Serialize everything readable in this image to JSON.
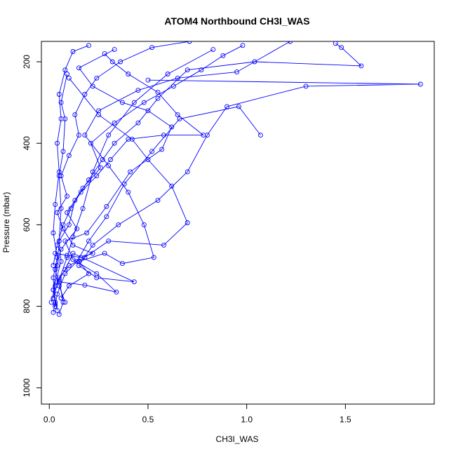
{
  "chart_data": {
    "type": "line",
    "title": "ATOM4 Northbound CH3I_WAS",
    "xlabel": "CH3I_WAS",
    "ylabel": "Pressure (mbar)",
    "xlim": [
      -0.04,
      1.95
    ],
    "ylim": [
      1040,
      150
    ],
    "y_reversed": true,
    "xticks": [
      0.0,
      0.5,
      1.0,
      1.5
    ],
    "xtick_labels": [
      "0.0",
      "0.5",
      "1.0",
      "1.5"
    ],
    "yticks": [
      200,
      400,
      600,
      800,
      1000
    ],
    "ytick_labels": [
      "200",
      "400",
      "600",
      "800",
      "1000"
    ],
    "grid": false,
    "marker": "open-circle",
    "color": "#0000ff",
    "series": [
      {
        "points": [
          [
            0.02,
            815
          ],
          [
            0.03,
            790
          ],
          [
            0.02,
            760
          ],
          [
            0.04,
            700
          ],
          [
            0.05,
            640
          ],
          [
            0.06,
            560
          ],
          [
            0.05,
            480
          ],
          [
            0.07,
            420
          ],
          [
            0.08,
            340
          ],
          [
            0.06,
            300
          ],
          [
            0.09,
            230
          ]
        ]
      },
      {
        "points": [
          [
            0.05,
            820
          ],
          [
            0.07,
            790
          ],
          [
            0.05,
            735
          ],
          [
            0.09,
            680
          ],
          [
            0.12,
            630
          ],
          [
            0.17,
            560
          ],
          [
            0.22,
            470
          ],
          [
            0.3,
            380
          ],
          [
            0.43,
            300
          ],
          [
            0.6,
            230
          ],
          [
            0.83,
            170
          ]
        ]
      },
      {
        "points": [
          [
            0.03,
            800
          ],
          [
            0.04,
            770
          ],
          [
            0.08,
            720
          ],
          [
            0.14,
            690
          ],
          [
            0.2,
            640
          ],
          [
            0.29,
            580
          ],
          [
            0.38,
            500
          ],
          [
            0.52,
            420
          ],
          [
            0.66,
            340
          ],
          [
            0.96,
            310
          ],
          [
            1.07,
            380
          ]
        ]
      },
      {
        "points": [
          [
            0.02,
            780
          ],
          [
            0.05,
            730
          ],
          [
            0.1,
            700
          ],
          [
            0.18,
            680
          ],
          [
            0.3,
            640
          ],
          [
            0.58,
            650
          ],
          [
            0.7,
            595
          ],
          [
            0.62,
            505
          ],
          [
            0.5,
            440
          ],
          [
            0.42,
            390
          ],
          [
            0.25,
            330
          ],
          [
            0.1,
            240
          ]
        ]
      },
      {
        "points": [
          [
            0.01,
            790
          ],
          [
            0.03,
            750
          ],
          [
            0.08,
            710
          ],
          [
            0.12,
            670
          ],
          [
            0.43,
            740
          ],
          [
            0.24,
            730
          ],
          [
            0.15,
            700
          ],
          [
            0.22,
            650
          ],
          [
            0.35,
            600
          ],
          [
            0.55,
            540
          ],
          [
            0.7,
            470
          ],
          [
            0.8,
            380
          ],
          [
            0.9,
            310
          ],
          [
            1.3,
            260
          ],
          [
            1.88,
            255
          ],
          [
            0.5,
            245
          ]
        ]
      },
      {
        "points": [
          [
            0.04,
            810
          ],
          [
            0.02,
            760
          ],
          [
            0.06,
            690
          ],
          [
            0.05,
            640
          ],
          [
            0.1,
            600
          ],
          [
            0.13,
            540
          ],
          [
            0.2,
            490
          ],
          [
            0.27,
            440
          ],
          [
            0.33,
            400
          ],
          [
            0.45,
            350
          ],
          [
            0.55,
            290
          ],
          [
            0.7,
            220
          ],
          [
            1.04,
            200
          ],
          [
            1.58,
            210
          ],
          [
            1.48,
            165
          ],
          [
            1.45,
            155
          ]
        ]
      },
      {
        "points": [
          [
            0.03,
            795
          ],
          [
            0.02,
            730
          ],
          [
            0.04,
            680
          ],
          [
            0.02,
            620
          ],
          [
            0.03,
            550
          ],
          [
            0.05,
            470
          ],
          [
            0.04,
            400
          ],
          [
            0.06,
            340
          ],
          [
            0.05,
            280
          ],
          [
            0.08,
            220
          ],
          [
            0.12,
            175
          ],
          [
            0.2,
            160
          ]
        ]
      },
      {
        "points": [
          [
            0.06,
            780
          ],
          [
            0.1,
            750
          ],
          [
            0.2,
            720
          ],
          [
            0.15,
            690
          ],
          [
            0.28,
            670
          ],
          [
            0.37,
            695
          ],
          [
            0.53,
            680
          ],
          [
            0.48,
            600
          ],
          [
            0.4,
            520
          ],
          [
            0.3,
            455
          ],
          [
            0.18,
            380
          ],
          [
            0.25,
            320
          ],
          [
            0.45,
            270
          ],
          [
            0.65,
            240
          ],
          [
            0.95,
            225
          ],
          [
            1.22,
            150
          ]
        ]
      },
      {
        "points": [
          [
            0.02,
            700
          ],
          [
            0.04,
            650
          ],
          [
            0.07,
            600
          ],
          [
            0.11,
            560
          ],
          [
            0.16,
            520
          ],
          [
            0.24,
            480
          ],
          [
            0.31,
            440
          ],
          [
            0.4,
            390
          ],
          [
            0.58,
            380
          ],
          [
            0.78,
            380
          ],
          [
            0.65,
            330
          ],
          [
            0.55,
            275
          ],
          [
            0.4,
            230
          ],
          [
            0.32,
            200
          ],
          [
            0.28,
            180
          ]
        ]
      },
      {
        "points": [
          [
            0.08,
            790
          ],
          [
            0.05,
            750
          ],
          [
            0.03,
            710
          ],
          [
            0.06,
            660
          ],
          [
            0.14,
            610
          ],
          [
            0.09,
            570
          ],
          [
            0.17,
            510
          ],
          [
            0.26,
            460
          ],
          [
            0.21,
            400
          ],
          [
            0.33,
            350
          ],
          [
            0.48,
            300
          ],
          [
            0.63,
            260
          ],
          [
            0.77,
            220
          ],
          [
            0.88,
            185
          ],
          [
            0.98,
            160
          ]
        ]
      },
      {
        "points": [
          [
            0.05,
            740
          ],
          [
            0.18,
            748
          ],
          [
            0.34,
            765
          ],
          [
            0.24,
            720
          ],
          [
            0.12,
            685
          ],
          [
            0.08,
            640
          ],
          [
            0.19,
            620
          ],
          [
            0.29,
            555
          ],
          [
            0.41,
            470
          ],
          [
            0.57,
            415
          ],
          [
            0.62,
            360
          ],
          [
            0.5,
            320
          ],
          [
            0.37,
            300
          ],
          [
            0.22,
            260
          ],
          [
            0.15,
            215
          ],
          [
            0.33,
            170
          ]
        ]
      },
      {
        "points": [
          [
            0.03,
            670
          ],
          [
            0.09,
            675
          ],
          [
            0.16,
            680
          ],
          [
            0.22,
            670
          ],
          [
            0.12,
            650
          ],
          [
            0.07,
            610
          ],
          [
            0.04,
            570
          ],
          [
            0.09,
            530
          ],
          [
            0.06,
            480
          ],
          [
            0.1,
            430
          ],
          [
            0.15,
            380
          ],
          [
            0.13,
            330
          ],
          [
            0.18,
            280
          ],
          [
            0.24,
            240
          ],
          [
            0.36,
            200
          ],
          [
            0.52,
            165
          ],
          [
            0.71,
            150
          ]
        ]
      }
    ]
  }
}
